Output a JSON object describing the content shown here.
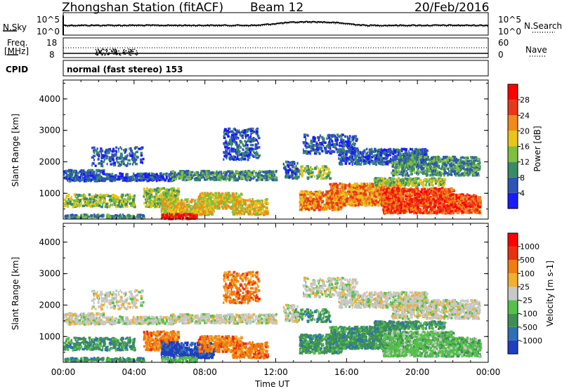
{
  "header": {
    "station": "Zhongshan Station (fitACF)",
    "beam": "Beam 12",
    "date": "20/Feb/2016"
  },
  "nsky_panel": {
    "left_label": "N.Sky",
    "right_label": "N.Search",
    "left_ticks": [
      "10^5",
      "10^0"
    ],
    "right_ticks": [
      "10^5",
      "10^0"
    ]
  },
  "freq_panel": {
    "left_label": "Freq.",
    "left_unit": "[MHz]",
    "right_label": "Nave",
    "left_ticks": [
      "18",
      "8"
    ],
    "right_ticks": [
      "60",
      "0"
    ]
  },
  "cpid": {
    "label": "CPID",
    "text": "normal (fast stereo) 153"
  },
  "chart_data": [
    {
      "type": "heatmap",
      "name": "power",
      "ylabel": "Slant Range [km]",
      "yticks": [
        1000,
        2000,
        3000,
        4000
      ],
      "ylim": [
        180,
        4600
      ],
      "xlim": [
        0,
        24
      ],
      "colorbar": {
        "label": "Power [dB]",
        "ticks": [
          4,
          8,
          12,
          16,
          20,
          24,
          28
        ],
        "colors": [
          "#1a1aff",
          "#2f55b4",
          "#3a8a66",
          "#7fbf3f",
          "#e8c51a",
          "#f08a1a",
          "#e8381a",
          "#ff0000"
        ]
      }
    },
    {
      "type": "heatmap",
      "name": "velocity",
      "ylabel": "Slant Range [km]",
      "yticks": [
        1000,
        2000,
        3000,
        4000
      ],
      "ylim": [
        180,
        4600
      ],
      "xlim": [
        0,
        24
      ],
      "colorbar": {
        "label": "Velocity [m s-1]",
        "ticks": [
          1000,
          500,
          100,
          25,
          -25,
          -100,
          -500,
          -1000
        ],
        "colors": [
          "#1f3fbf",
          "#2f6fb4",
          "#3f8f55",
          "#55c04a",
          "#c8c8c8",
          "#f0b030",
          "#f07d10",
          "#e83010",
          "#ff0000"
        ]
      }
    }
  ],
  "x_axis": {
    "label": "Time UT",
    "ticks": [
      "00:00",
      "04:00",
      "08:00",
      "12:00",
      "16:00",
      "20:00",
      "00:00"
    ]
  }
}
